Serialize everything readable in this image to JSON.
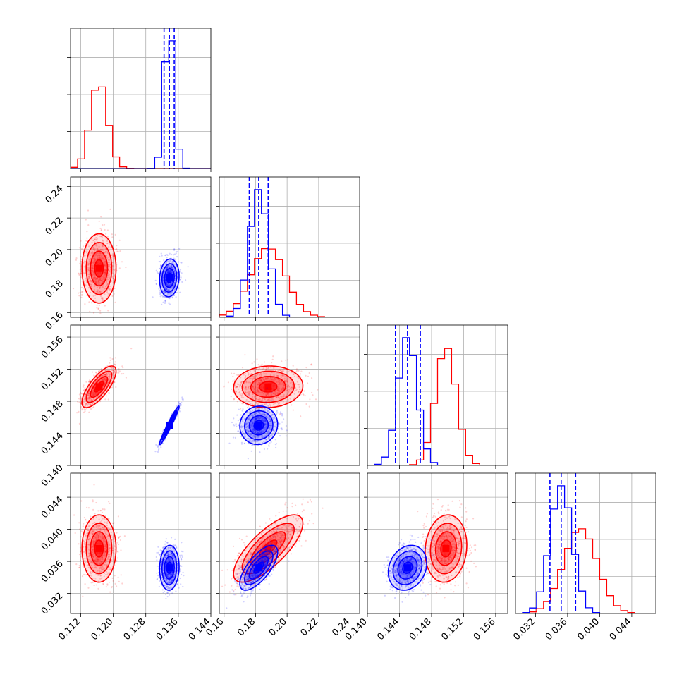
{
  "colors": {
    "series_a": "#ff0000",
    "series_b": "#0000ff",
    "grid": "#b0b0b0",
    "frame": "#000000"
  },
  "chart_data": {
    "type": "corner",
    "grid": true,
    "parameters": [
      {
        "index": 0,
        "range": [
          0.1095,
          0.144
        ],
        "ticks": [
          "0.112",
          "0.120",
          "0.128",
          "0.136",
          "0.144"
        ]
      },
      {
        "index": 1,
        "range": [
          0.157,
          0.246
        ],
        "ticks": [
          "0.16",
          "0.18",
          "0.20",
          "0.22",
          "0.24"
        ]
      },
      {
        "index": 2,
        "range": [
          0.14,
          0.1575
        ],
        "ticks": [
          "0.140",
          "0.144",
          "0.148",
          "0.152",
          "0.156"
        ]
      },
      {
        "index": 3,
        "range": [
          0.0295,
          0.047
        ],
        "ticks": [
          "0.032",
          "0.036",
          "0.040",
          "0.044"
        ]
      }
    ],
    "series": [
      {
        "color": "red",
        "mean": [
          0.1165,
          0.188,
          0.1498,
          0.0376
        ],
        "sigma": [
          0.0021,
          0.011,
          0.0013,
          0.0021
        ],
        "corr": {
          "0-1": 0.0,
          "0-2": 0.75,
          "0-3": 0.0,
          "1-2": 0.05,
          "1-3": 0.75,
          "2-3": 0.1
        }
      },
      {
        "color": "blue",
        "mean": [
          0.1338,
          0.182,
          0.145,
          0.0352
        ],
        "sigma": [
          0.0012,
          0.006,
          0.0012,
          0.0014
        ],
        "corr": {
          "0-1": 0.1,
          "0-2": 0.97,
          "0-3": 0.05,
          "1-2": 0.05,
          "1-3": 0.7,
          "2-3": 0.2
        }
      }
    ],
    "quantile_lines": {
      "color": "blue",
      "style": "dashed",
      "values": [
        [
          0.1325,
          0.1338,
          0.135
        ],
        [
          0.176,
          0.182,
          0.188
        ],
        [
          0.1435,
          0.145,
          0.1466
        ],
        [
          0.0338,
          0.0352,
          0.037
        ]
      ]
    },
    "histogram_bins": 20,
    "contour_levels_sigma": [
      0.5,
      1.0,
      1.5,
      2.0
    ]
  }
}
